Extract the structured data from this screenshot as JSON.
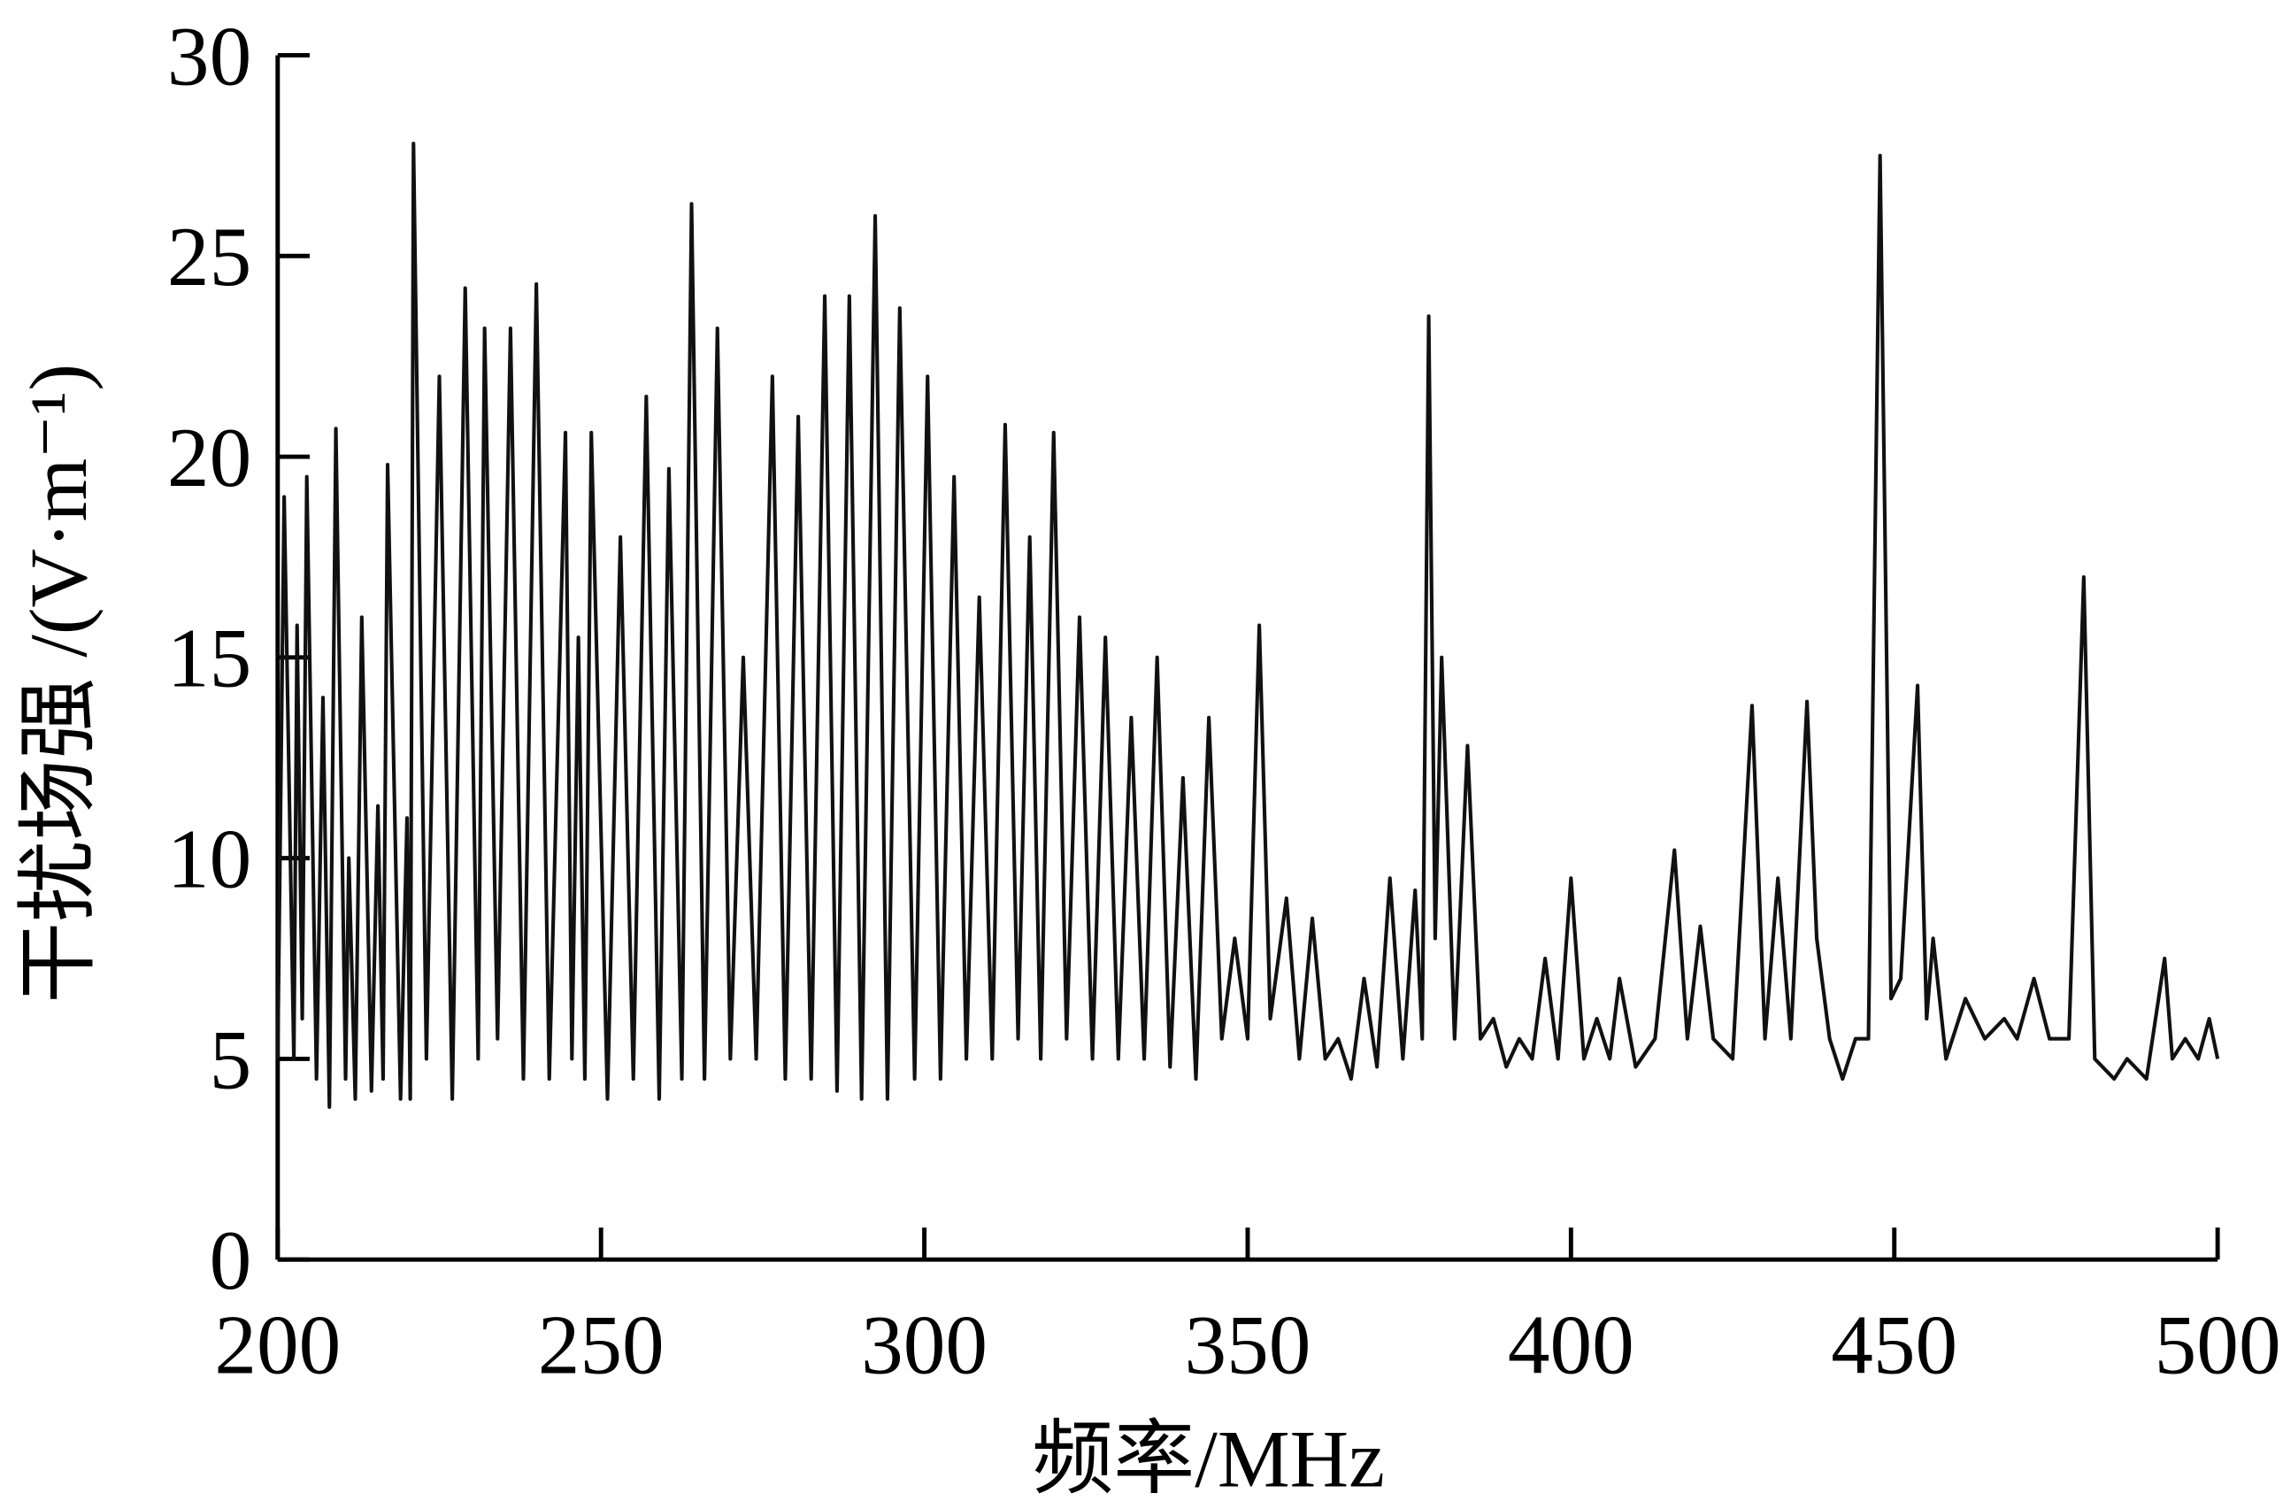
{
  "chart_data": {
    "type": "line",
    "xlabel": "频率/MHz",
    "ylabel": "干扰场强 /(V·m⁻¹)",
    "xlim": [
      200,
      500
    ],
    "xticks": [
      200,
      250,
      300,
      350,
      400,
      450,
      500
    ],
    "ylim": [
      0,
      30
    ],
    "yticks": [
      0,
      5,
      10,
      15,
      20,
      25,
      30
    ],
    "grid": false,
    "x": [
      200,
      201,
      202.5,
      203,
      203.8,
      204.5,
      206,
      207,
      208,
      209,
      210.5,
      211,
      212,
      213,
      214.5,
      215.5,
      216.3,
      217,
      219,
      220,
      220.5,
      221,
      223,
      225,
      227,
      229,
      231,
      232,
      234,
      236,
      238,
      240,
      242,
      244.5,
      245.5,
      246.5,
      247.5,
      248.5,
      251,
      253,
      255,
      257,
      259,
      260.5,
      262.5,
      264,
      266,
      268,
      270,
      272,
      274,
      276.5,
      278.5,
      280.5,
      282.5,
      284.6,
      286.5,
      288.4,
      290.3,
      292.4,
      294.3,
      296.2,
      298.5,
      300.5,
      302.5,
      304.6,
      306.5,
      308.5,
      310.5,
      312.5,
      314.5,
      316.3,
      318,
      320,
      322,
      324,
      326,
      328,
      330,
      332,
      334,
      336,
      338,
      340,
      342,
      344,
      346,
      348,
      350,
      351.8,
      353.5,
      356,
      358,
      360,
      362,
      364,
      366,
      368,
      370,
      372,
      374,
      375.9,
      377,
      378,
      379,
      380,
      382,
      384,
      386,
      388,
      390,
      392,
      394,
      396,
      398,
      400,
      402,
      404,
      406,
      407.5,
      410,
      413,
      416,
      418,
      420,
      422,
      425,
      428,
      430,
      432,
      434,
      436.5,
      438,
      440,
      442,
      444,
      446,
      447.8,
      449.5,
      451,
      453.6,
      455,
      456,
      458,
      461,
      464,
      467,
      469,
      471.6,
      474,
      477,
      479.3,
      481,
      484,
      486,
      489,
      491.8,
      493,
      495,
      497,
      498.7,
      500
    ],
    "series": [
      {
        "name": null,
        "color": "#111111",
        "values": [
          5,
          19,
          5,
          15.8,
          6,
          19.5,
          4.5,
          14,
          3.8,
          20.7,
          4.5,
          10,
          4,
          16,
          4.2,
          11.3,
          4.5,
          19.8,
          4,
          11,
          4,
          27.8,
          5,
          22,
          4,
          24.2,
          5,
          23.2,
          5.5,
          23.2,
          4.5,
          24.3,
          4.5,
          20.6,
          5,
          15.5,
          4.5,
          20.6,
          4,
          18,
          4.5,
          21.5,
          4,
          19.7,
          4.5,
          26.3,
          4.5,
          23.2,
          5,
          15,
          5,
          22,
          4.5,
          21,
          4.5,
          24,
          4.2,
          24,
          4,
          26,
          4,
          23.7,
          4.5,
          22,
          4.5,
          19.5,
          5,
          16.5,
          5,
          20.8,
          5.5,
          18,
          5,
          20.6,
          5.5,
          16,
          5,
          15.5,
          5,
          13.5,
          5,
          15,
          4.8,
          12,
          4.5,
          13.5,
          5.5,
          8,
          5.5,
          15.8,
          6,
          9,
          5,
          8.5,
          5,
          5.5,
          4.5,
          7,
          4.8,
          9.5,
          5,
          9.2,
          5.5,
          23.5,
          8,
          15,
          5.5,
          12.8,
          5.5,
          6,
          4.8,
          5.5,
          5,
          7.5,
          5,
          9.5,
          5,
          6,
          5,
          7,
          4.8,
          5.5,
          10.2,
          5.5,
          8.3,
          5.5,
          5,
          13.8,
          5.5,
          9.5,
          5.5,
          13.9,
          8,
          5.5,
          4.5,
          5.5,
          5.5,
          27.5,
          6.5,
          7,
          14.3,
          6,
          8,
          5,
          6.5,
          5.5,
          6,
          5.5,
          7,
          5.5,
          5.5,
          17,
          5,
          4.5,
          5,
          4.5,
          7.5,
          5,
          5.5,
          5,
          6,
          5
        ]
      }
    ]
  }
}
